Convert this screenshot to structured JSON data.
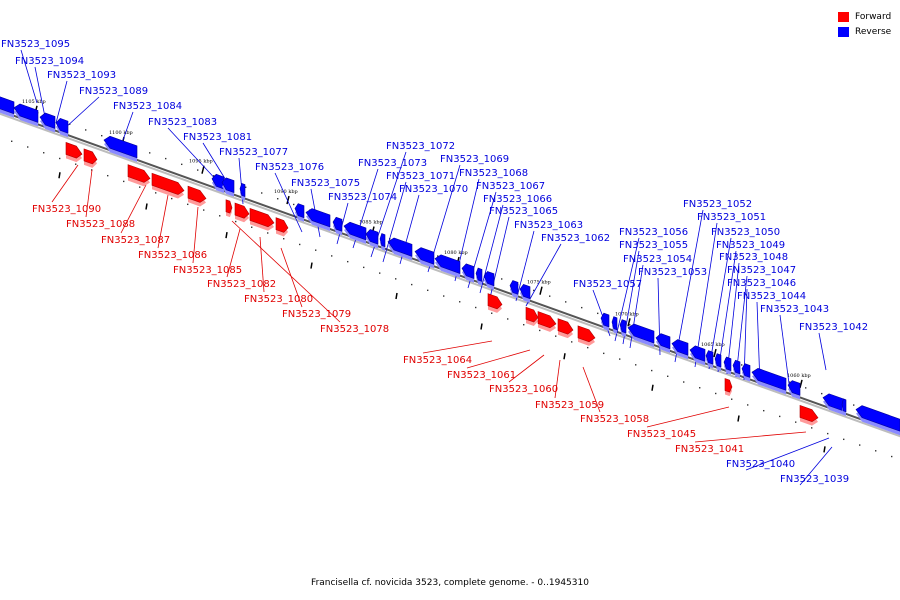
{
  "legend": {
    "forward_label": "Forward",
    "reverse_label": "Reverse",
    "forward_color": "#ff0000",
    "reverse_color": "#0000ff"
  },
  "caption": "Francisella cf. novicida 3523, complete genome. - 0..1945310",
  "ticks": [
    "1105 kbp",
    "1100 kbp",
    "1095 kbp",
    "1090 kbp",
    "1085 kbp",
    "1080 kbp",
    "1075 kbp",
    "1070 kbp",
    "1065 kbp",
    "1060 kbp"
  ],
  "genes": [
    {
      "label": "FN3523_1095",
      "strand": "reverse"
    },
    {
      "label": "FN3523_1094",
      "strand": "reverse"
    },
    {
      "label": "FN3523_1093",
      "strand": "reverse"
    },
    {
      "label": "FN3523_1090",
      "strand": "forward"
    },
    {
      "label": "FN3523_1089",
      "strand": "reverse"
    },
    {
      "label": "FN3523_1088",
      "strand": "forward"
    },
    {
      "label": "FN3523_1087",
      "strand": "forward"
    },
    {
      "label": "FN3523_1086",
      "strand": "forward"
    },
    {
      "label": "FN3523_1085",
      "strand": "forward"
    },
    {
      "label": "FN3523_1084",
      "strand": "reverse"
    },
    {
      "label": "FN3523_1083",
      "strand": "reverse"
    },
    {
      "label": "FN3523_1082",
      "strand": "forward"
    },
    {
      "label": "FN3523_1081",
      "strand": "reverse"
    },
    {
      "label": "FN3523_1080",
      "strand": "forward"
    },
    {
      "label": "FN3523_1079",
      "strand": "forward"
    },
    {
      "label": "FN3523_1078",
      "strand": "forward"
    },
    {
      "label": "FN3523_1077",
      "strand": "reverse"
    },
    {
      "label": "FN3523_1076",
      "strand": "reverse"
    },
    {
      "label": "FN3523_1075",
      "strand": "reverse"
    },
    {
      "label": "FN3523_1074",
      "strand": "reverse"
    },
    {
      "label": "FN3523_1073",
      "strand": "reverse"
    },
    {
      "label": "FN3523_1072",
      "strand": "reverse"
    },
    {
      "label": "FN3523_1071",
      "strand": "reverse"
    },
    {
      "label": "FN3523_1070",
      "strand": "reverse"
    },
    {
      "label": "FN3523_1069",
      "strand": "reverse"
    },
    {
      "label": "FN3523_1068",
      "strand": "reverse"
    },
    {
      "label": "FN3523_1067",
      "strand": "reverse"
    },
    {
      "label": "FN3523_1066",
      "strand": "reverse"
    },
    {
      "label": "FN3523_1065",
      "strand": "reverse"
    },
    {
      "label": "FN3523_1064",
      "strand": "forward"
    },
    {
      "label": "FN3523_1063",
      "strand": "reverse"
    },
    {
      "label": "FN3523_1062",
      "strand": "reverse"
    },
    {
      "label": "FN3523_1061",
      "strand": "forward"
    },
    {
      "label": "FN3523_1060",
      "strand": "forward"
    },
    {
      "label": "FN3523_1059",
      "strand": "forward"
    },
    {
      "label": "FN3523_1058",
      "strand": "forward"
    },
    {
      "label": "FN3523_1057",
      "strand": "reverse"
    },
    {
      "label": "FN3523_1056",
      "strand": "reverse"
    },
    {
      "label": "FN3523_1055",
      "strand": "reverse"
    },
    {
      "label": "FN3523_1054",
      "strand": "reverse"
    },
    {
      "label": "FN3523_1053",
      "strand": "reverse"
    },
    {
      "label": "FN3523_1052",
      "strand": "reverse"
    },
    {
      "label": "FN3523_1051",
      "strand": "reverse"
    },
    {
      "label": "FN3523_1050",
      "strand": "reverse"
    },
    {
      "label": "FN3523_1049",
      "strand": "reverse"
    },
    {
      "label": "FN3523_1048",
      "strand": "reverse"
    },
    {
      "label": "FN3523_1047",
      "strand": "reverse"
    },
    {
      "label": "FN3523_1046",
      "strand": "reverse"
    },
    {
      "label": "FN3523_1045",
      "strand": "forward"
    },
    {
      "label": "FN3523_1044",
      "strand": "reverse"
    },
    {
      "label": "FN3523_1043",
      "strand": "reverse"
    },
    {
      "label": "FN3523_1042",
      "strand": "reverse"
    },
    {
      "label": "FN3523_1041",
      "strand": "forward"
    },
    {
      "label": "FN3523_1040",
      "strand": "reverse"
    },
    {
      "label": "FN3523_1039",
      "strand": "reverse"
    }
  ]
}
